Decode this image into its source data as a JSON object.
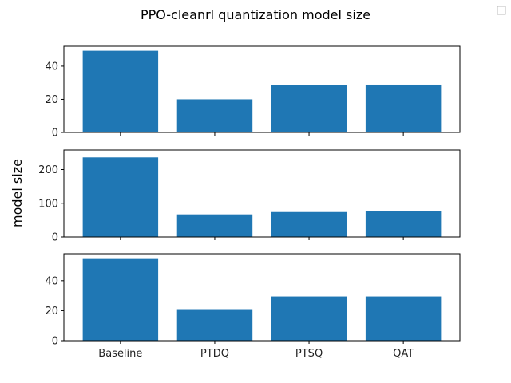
{
  "figure": {
    "title": "PPO-cleanrl quantization model size",
    "ylabel": "model size"
  },
  "legend": {
    "placement": "top-right",
    "entries": [
      ""
    ]
  },
  "colors": {
    "bar": "#1f77b4",
    "axes": "#000000",
    "background": "#ffffff"
  },
  "chart_data": [
    {
      "type": "bar",
      "categories": [
        "Baseline",
        "PTDQ",
        "PTSQ",
        "QAT"
      ],
      "values": [
        49.3,
        20.0,
        28.5,
        28.9
      ],
      "ylim": [
        0,
        52
      ],
      "yticks": [
        0,
        20,
        40
      ],
      "show_xticklabels": false,
      "grid": false
    },
    {
      "type": "bar",
      "categories": [
        "Baseline",
        "PTDQ",
        "PTSQ",
        "QAT"
      ],
      "values": [
        236,
        67,
        74,
        77
      ],
      "ylim": [
        0,
        258
      ],
      "yticks": [
        0,
        100,
        200
      ],
      "show_xticklabels": false,
      "grid": false
    },
    {
      "type": "bar",
      "categories": [
        "Baseline",
        "PTDQ",
        "PTSQ",
        "QAT"
      ],
      "values": [
        55.0,
        21.0,
        29.5,
        29.5
      ],
      "ylim": [
        0,
        58
      ],
      "yticks": [
        0,
        20,
        40
      ],
      "show_xticklabels": true,
      "grid": false
    }
  ]
}
